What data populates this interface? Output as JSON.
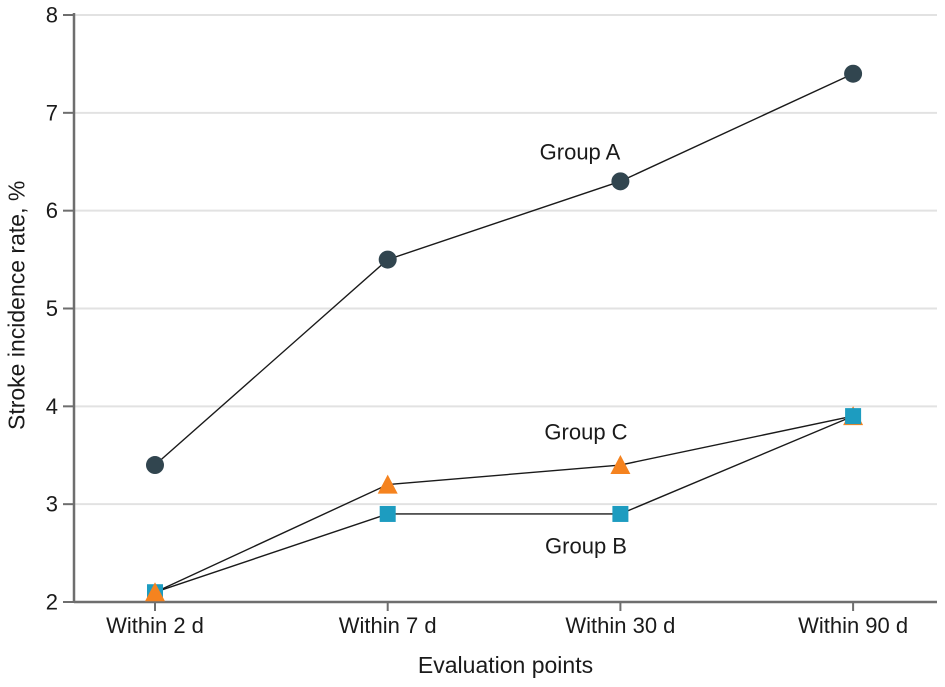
{
  "chart_data": {
    "type": "line",
    "title": "",
    "xlabel": "Evaluation points",
    "ylabel": "Stroke incidence rate, %",
    "categories": [
      "Within 2 d",
      "Within 7 d",
      "Within 30 d",
      "Within 90 d"
    ],
    "y_ticks": [
      2,
      3,
      4,
      5,
      6,
      7,
      8
    ],
    "ylim": [
      2,
      8
    ],
    "grid": "horizontal",
    "legend_position": "inline-annotations",
    "series": [
      {
        "name": "Group A",
        "marker": "circle",
        "color": "#31454f",
        "values": [
          3.4,
          5.5,
          6.3,
          7.4
        ]
      },
      {
        "name": "Group B",
        "marker": "square",
        "color": "#1d9cc0",
        "values": [
          2.1,
          2.9,
          2.9,
          3.9
        ],
        "marker_z": [
          0,
          1,
          1,
          2
        ]
      },
      {
        "name": "Group C",
        "marker": "triangle",
        "color": "#f5831f",
        "values": [
          2.1,
          3.2,
          3.4,
          3.9
        ]
      }
    ],
    "annotations": [
      {
        "text": "Group A",
        "x": 580,
        "y": 152
      },
      {
        "text": "Group C",
        "x": 586,
        "y": 432
      },
      {
        "text": "Group B",
        "x": 586,
        "y": 546
      }
    ],
    "colors": {
      "line": "#1a1a1a",
      "axis": "#6e6e6e",
      "grid": "#e2e2e2",
      "text": "#1a1a1a",
      "background": "#ffffff"
    }
  }
}
